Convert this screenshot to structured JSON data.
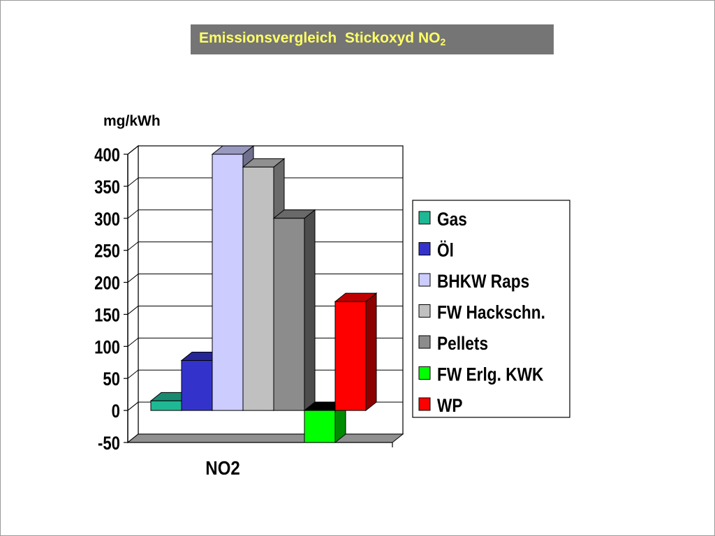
{
  "slide": {
    "title": {
      "main": "Emissionsvergleich  Stickoxyd NO",
      "subscript": "2"
    }
  },
  "chart_data": {
    "type": "bar",
    "three_d": true,
    "categories": [
      "NO2"
    ],
    "series": [
      {
        "name": "Gas",
        "values": [
          15
        ],
        "color": "#1fb894"
      },
      {
        "name": "Öl",
        "values": [
          78
        ],
        "color": "#3333cc"
      },
      {
        "name": "BHKW Raps",
        "values": [
          400
        ],
        "color": "#ccccff"
      },
      {
        "name": "FW Hackschn.",
        "values": [
          380
        ],
        "color": "#c0c0c0"
      },
      {
        "name": "Pellets",
        "values": [
          300
        ],
        "color": "#8c8c8c"
      },
      {
        "name": "FW Erlg. KWK",
        "values": [
          -50
        ],
        "color": "#00ff00"
      },
      {
        "name": "WP",
        "values": [
          170
        ],
        "color": "#ff0000"
      }
    ],
    "ylabel": "mg/kWh",
    "xlabel": "",
    "ylim": [
      -50,
      400
    ],
    "yticks": [
      "400",
      "350",
      "300",
      "250",
      "200",
      "150",
      "100",
      "50",
      "0",
      "-50"
    ],
    "grid": true,
    "legend": "right"
  }
}
